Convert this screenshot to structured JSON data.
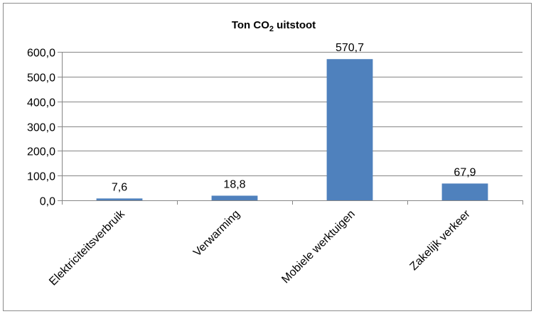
{
  "chart_data": {
    "type": "bar",
    "title_main": "Ton CO",
    "title_sub": "2",
    "title_rest": " uitstoot",
    "categories": [
      "Elektriciteitsverbruik",
      "Verwarming",
      "Mobiele werktuigen",
      "Zakelijk verkeer"
    ],
    "values": [
      7.6,
      18.8,
      570.7,
      67.9
    ],
    "value_labels": [
      "7,6",
      "18,8",
      "570,7",
      "67,9"
    ],
    "ylim": [
      0,
      600
    ],
    "yticks": [
      0,
      100,
      200,
      300,
      400,
      500,
      600
    ],
    "ytick_labels": [
      "0,0",
      "100,0",
      "200,0",
      "300,0",
      "400,0",
      "500,0",
      "600,0"
    ],
    "xlabel": "",
    "ylabel": "",
    "bar_color": "#4f81bd",
    "grid": "y"
  }
}
